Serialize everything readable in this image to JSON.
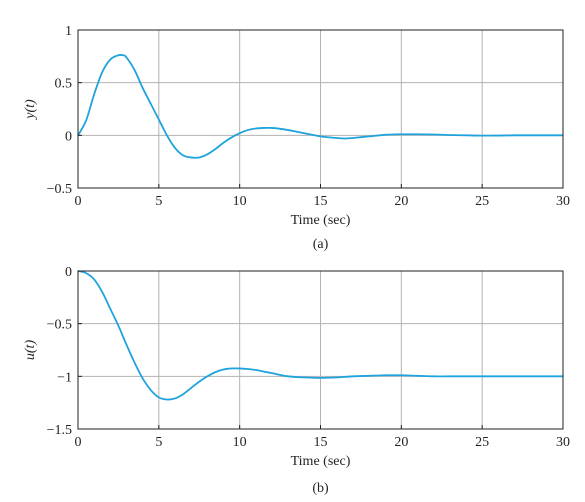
{
  "chart_data": [
    {
      "type": "line",
      "caption": "(a)",
      "xlabel": "Time (sec)",
      "ylabel": "y(t)",
      "xlim": [
        0,
        30
      ],
      "ylim": [
        -0.5,
        1
      ],
      "xticks": [
        0,
        5,
        10,
        15,
        20,
        25,
        30
      ],
      "xtick_labels": [
        "0",
        "5",
        "10",
        "15",
        "20",
        "25",
        "30"
      ],
      "yticks": [
        -0.5,
        0,
        0.5,
        1
      ],
      "ytick_labels": [
        "−0.5",
        "0",
        "0.5",
        "1"
      ],
      "grid": true,
      "line_color": "#1fa3dc",
      "series": [
        {
          "x": [
            0,
            0.5,
            1,
            1.5,
            2,
            2.5,
            2.8,
            3,
            3.5,
            4,
            4.5,
            5,
            5.5,
            6,
            6.5,
            7,
            7.5,
            8,
            8.5,
            9,
            9.5,
            10,
            10.5,
            11,
            11.5,
            12,
            12.5,
            13,
            13.5,
            14,
            15,
            16,
            16.5,
            17,
            18,
            19,
            20,
            21,
            22,
            23,
            24,
            25,
            26,
            27,
            28,
            29,
            30
          ],
          "y": [
            0,
            0.14,
            0.39,
            0.6,
            0.72,
            0.76,
            0.76,
            0.74,
            0.62,
            0.45,
            0.3,
            0.15,
            0.0,
            -0.12,
            -0.19,
            -0.21,
            -0.21,
            -0.18,
            -0.13,
            -0.07,
            -0.02,
            0.02,
            0.05,
            0.065,
            0.07,
            0.07,
            0.062,
            0.05,
            0.035,
            0.02,
            -0.01,
            -0.025,
            -0.03,
            -0.025,
            -0.01,
            0.005,
            0.01,
            0.01,
            0.008,
            0.003,
            0.0,
            -0.003,
            -0.002,
            0.0,
            0.0,
            0.0,
            0.0
          ]
        }
      ]
    },
    {
      "type": "line",
      "caption": "(b)",
      "xlabel": "Time (sec)",
      "ylabel": "u(t)",
      "xlim": [
        0,
        30
      ],
      "ylim": [
        -1.5,
        0
      ],
      "xticks": [
        0,
        5,
        10,
        15,
        20,
        25,
        30
      ],
      "xtick_labels": [
        "0",
        "5",
        "10",
        "15",
        "20",
        "25",
        "30"
      ],
      "yticks": [
        -1.5,
        -1,
        -0.5,
        0
      ],
      "ytick_labels": [
        "−1.5",
        "−1",
        "−0.5",
        "0"
      ],
      "grid": true,
      "line_color": "#1fa3dc",
      "series": [
        {
          "x": [
            0,
            0.5,
            1,
            1.5,
            2,
            2.5,
            3,
            3.5,
            4,
            4.5,
            5,
            5.5,
            6,
            6.5,
            7,
            7.5,
            8,
            8.5,
            9,
            9.5,
            10,
            10.5,
            11,
            11.5,
            12,
            13,
            14,
            15,
            16,
            17,
            18,
            19,
            20,
            21,
            22,
            23,
            24,
            25,
            26,
            27,
            28,
            29,
            30
          ],
          "y": [
            0,
            -0.02,
            -0.08,
            -0.2,
            -0.36,
            -0.52,
            -0.7,
            -0.87,
            -1.02,
            -1.13,
            -1.2,
            -1.22,
            -1.21,
            -1.17,
            -1.11,
            -1.05,
            -1.0,
            -0.96,
            -0.935,
            -0.925,
            -0.925,
            -0.93,
            -0.94,
            -0.955,
            -0.97,
            -1.0,
            -1.01,
            -1.015,
            -1.01,
            -1.0,
            -0.995,
            -0.99,
            -0.99,
            -0.995,
            -1.0,
            -1.0,
            -1.0,
            -1.0,
            -1.0,
            -1.0,
            -1.0,
            -1.0,
            -1.0
          ]
        }
      ]
    }
  ]
}
